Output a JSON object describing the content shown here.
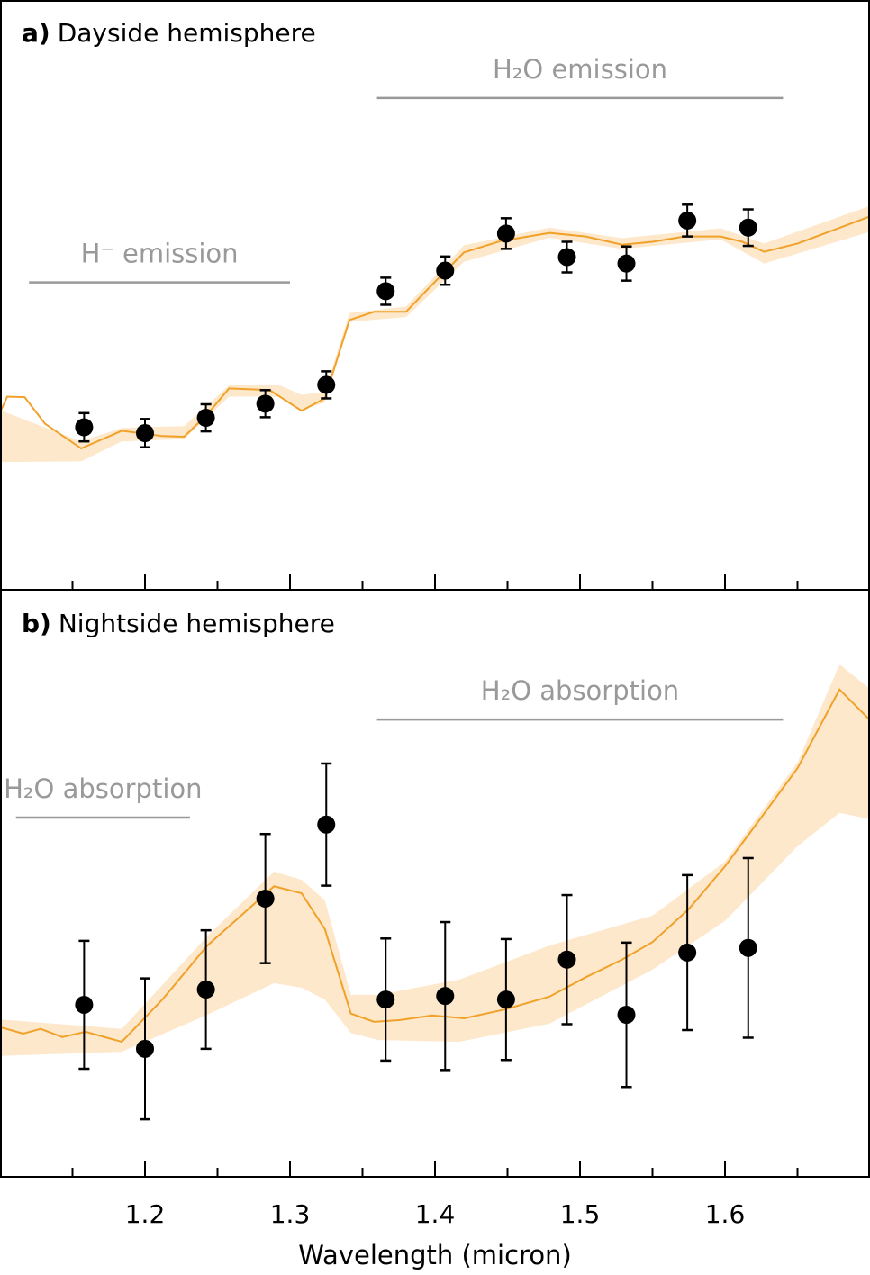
{
  "chart_data": [
    {
      "type": "scatter",
      "panel_label": "a)",
      "title": "Dayside hemisphere",
      "xlabel": "Wavelength (micron)",
      "ylabel": "",
      "xlim": [
        1.1,
        1.7
      ],
      "ylim": [
        0,
        100
      ],
      "y_units": "arbitrary (unlabeled axis)",
      "grid": false,
      "colors": {
        "data": "#000000",
        "model_line": "#f0a12a",
        "model_band": "#fde8cb",
        "annotation": "#999999"
      },
      "observations": {
        "x": [
          1.158,
          1.2,
          1.242,
          1.283,
          1.325,
          1.366,
          1.407,
          1.449,
          1.491,
          1.532,
          1.574,
          1.616
        ],
        "y": [
          27.6,
          26.6,
          29.2,
          31.6,
          34.8,
          50.7,
          54.2,
          60.5,
          56.5,
          55.4,
          62.7,
          61.5
        ],
        "yerr": [
          2.4,
          2.4,
          2.3,
          2.3,
          2.3,
          2.3,
          2.4,
          2.6,
          2.6,
          2.9,
          2.7,
          3.1
        ]
      },
      "model": {
        "x": [
          1.1,
          1.105,
          1.117,
          1.131,
          1.156,
          1.184,
          1.212,
          1.227,
          1.243,
          1.258,
          1.286,
          1.308,
          1.324,
          1.341,
          1.358,
          1.38,
          1.398,
          1.42,
          1.445,
          1.479,
          1.504,
          1.529,
          1.55,
          1.572,
          1.597,
          1.612,
          1.627,
          1.65,
          1.7
        ],
        "y": [
          30.1,
          32.8,
          32.7,
          28.2,
          24.0,
          27.0,
          26.1,
          26.0,
          29.8,
          34.2,
          33.9,
          30.4,
          32.5,
          45.8,
          47.2,
          47.2,
          51.8,
          57.3,
          59.2,
          60.6,
          60.0,
          58.6,
          59.1,
          60.0,
          60.0,
          59.1,
          57.4,
          58.8,
          63.4
        ]
      },
      "model_band": {
        "x": [
          1.1,
          1.156,
          1.184,
          1.227,
          1.258,
          1.293,
          1.308,
          1.324,
          1.341,
          1.38,
          1.42,
          1.479,
          1.529,
          1.597,
          1.627,
          1.7
        ],
        "upper": [
          30.5,
          25.2,
          27.5,
          27.8,
          34.7,
          34.7,
          33.1,
          33.6,
          47.0,
          48.1,
          58.5,
          61.5,
          59.7,
          61.4,
          58.8,
          65.2
        ],
        "lower": [
          21.7,
          21.8,
          25.2,
          25.6,
          32.8,
          32.8,
          30.5,
          31.8,
          45.5,
          46.3,
          55.7,
          59.8,
          57.9,
          59.5,
          55.4,
          60.8
        ]
      },
      "annotations": [
        {
          "text": "H⁻ emission",
          "x_range": [
            1.12,
            1.3
          ],
          "y": 52.2
        },
        {
          "text": "H₂O emission",
          "x_range": [
            1.36,
            1.64
          ],
          "y": 83.5
        }
      ],
      "x_ticks": [
        1.2,
        1.3,
        1.4,
        1.5,
        1.6
      ],
      "x_minor_ticks": [
        1.15,
        1.25,
        1.35,
        1.45,
        1.55,
        1.65
      ]
    },
    {
      "type": "scatter",
      "panel_label": "b)",
      "title": "Nightside hemisphere",
      "xlabel": "Wavelength (micron)",
      "ylabel": "",
      "xlim": [
        1.1,
        1.7
      ],
      "ylim": [
        0,
        100
      ],
      "y_units": "arbitrary (unlabeled axis)",
      "grid": false,
      "colors": {
        "data": "#000000",
        "model_line": "#f0a12a",
        "model_band": "#fde8cb",
        "annotation": "#999999"
      },
      "observations": {
        "x": [
          1.158,
          1.2,
          1.242,
          1.283,
          1.325,
          1.366,
          1.407,
          1.449,
          1.491,
          1.532,
          1.574,
          1.616
        ],
        "y": [
          29.3,
          21.8,
          31.9,
          47.4,
          60.0,
          30.2,
          30.8,
          30.2,
          37.0,
          27.6,
          38.2,
          39.0
        ],
        "yerr": [
          10.9,
          12.0,
          10.1,
          11.0,
          10.4,
          10.4,
          12.6,
          10.3,
          11.0,
          12.3,
          13.2,
          15.3
        ]
      },
      "model": {
        "x": [
          1.1,
          1.116,
          1.128,
          1.143,
          1.159,
          1.184,
          1.212,
          1.243,
          1.289,
          1.308,
          1.324,
          1.342,
          1.358,
          1.376,
          1.398,
          1.42,
          1.448,
          1.479,
          1.504,
          1.529,
          1.55,
          1.575,
          1.6,
          1.625,
          1.65,
          1.679,
          1.7
        ],
        "y": [
          25.5,
          24.4,
          25.2,
          23.8,
          24.7,
          23.0,
          30.2,
          39.4,
          49.5,
          48.3,
          42.2,
          27.8,
          26.4,
          26.7,
          27.5,
          27.0,
          28.5,
          30.7,
          34.0,
          37.0,
          40.0,
          45.6,
          52.9,
          61.2,
          69.6,
          83.0,
          77.8
        ]
      },
      "model_band": {
        "x": [
          1.1,
          1.184,
          1.243,
          1.289,
          1.308,
          1.324,
          1.342,
          1.361,
          1.417,
          1.479,
          1.55,
          1.6,
          1.65,
          1.679,
          1.7
        ],
        "upper": [
          26.8,
          25.2,
          41.0,
          52.0,
          50.6,
          47.1,
          31.0,
          31.0,
          33.6,
          39.4,
          44.5,
          53.7,
          70.6,
          87.3,
          83.1
        ],
        "lower": [
          20.6,
          21.3,
          27.6,
          33.0,
          32.2,
          30.2,
          24.5,
          23.3,
          23.0,
          26.1,
          35.3,
          43.6,
          56.3,
          62.0,
          60.9
        ]
      },
      "annotations": [
        {
          "text": "H₂O absorption",
          "x_range": [
            1.111,
            1.231
          ],
          "y": 61.2
        },
        {
          "text": "H₂O absorption",
          "x_range": [
            1.36,
            1.64
          ],
          "y": 77.9
        }
      ],
      "x_ticks": [
        1.2,
        1.3,
        1.4,
        1.5,
        1.6
      ],
      "x_minor_ticks": [
        1.15,
        1.25,
        1.35,
        1.45,
        1.55,
        1.65
      ]
    }
  ],
  "x_tick_labels": [
    "1.2",
    "1.3",
    "1.4",
    "1.5",
    "1.6"
  ],
  "xlabel": "Wavelength (micron)"
}
